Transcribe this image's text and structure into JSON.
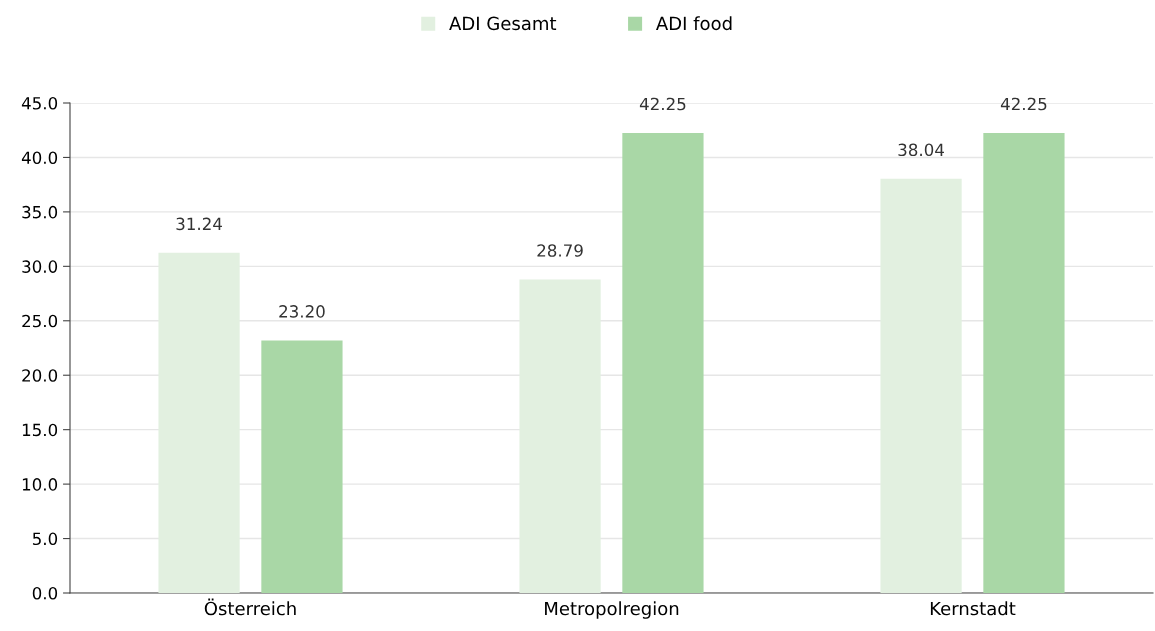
{
  "chart_data": {
    "type": "bar",
    "categories": [
      "Österreich",
      "Metropolregion",
      "Kernstadt"
    ],
    "series": [
      {
        "name": "ADI Gesamt",
        "color": "#e2f0e0",
        "values": [
          31.24,
          28.79,
          38.04
        ],
        "value_labels": [
          "31.24",
          "28.79",
          "38.04"
        ]
      },
      {
        "name": "ADI food",
        "color": "#a9d7a6",
        "values": [
          23.2,
          42.25,
          42.25
        ],
        "value_labels": [
          "23.20",
          "42.25",
          "42.25"
        ]
      }
    ],
    "ylim": [
      0,
      45
    ],
    "yticks": [
      {
        "value": 0,
        "label": "0.0"
      },
      {
        "value": 5,
        "label": "5.0"
      },
      {
        "value": 10,
        "label": "10.0"
      },
      {
        "value": 15,
        "label": "15.0"
      },
      {
        "value": 20,
        "label": "20.0"
      },
      {
        "value": 25,
        "label": "25.0"
      },
      {
        "value": 30,
        "label": "30.0"
      },
      {
        "value": 35,
        "label": "35.0"
      },
      {
        "value": 40,
        "label": "40.0"
      },
      {
        "value": 45,
        "label": "45.0"
      }
    ],
    "grid": "y",
    "legend": "top"
  }
}
